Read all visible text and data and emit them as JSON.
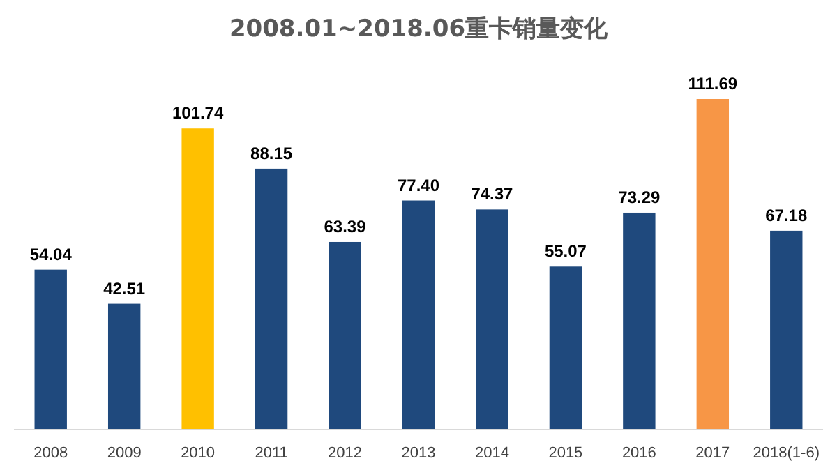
{
  "chart_data": {
    "type": "bar",
    "title": "2008.01~2018.06重卡销量变化",
    "categories": [
      "2008",
      "2009",
      "2010",
      "2011",
      "2012",
      "2013",
      "2014",
      "2015",
      "2016",
      "2017",
      "2018(1-6)"
    ],
    "values": [
      54.04,
      42.51,
      101.74,
      88.15,
      63.39,
      77.4,
      74.37,
      55.07,
      73.29,
      111.69,
      67.18
    ],
    "colors": [
      "#1f497d",
      "#1f497d",
      "#ffc000",
      "#1f497d",
      "#1f497d",
      "#1f497d",
      "#1f497d",
      "#1f497d",
      "#1f497d",
      "#f79646",
      "#1f497d"
    ],
    "value_labels": [
      "54.04",
      "42.51",
      "101.74",
      "88.15",
      "63.39",
      "77.40",
      "74.37",
      "55.07",
      "73.29",
      "111.69",
      "67.18"
    ]
  }
}
